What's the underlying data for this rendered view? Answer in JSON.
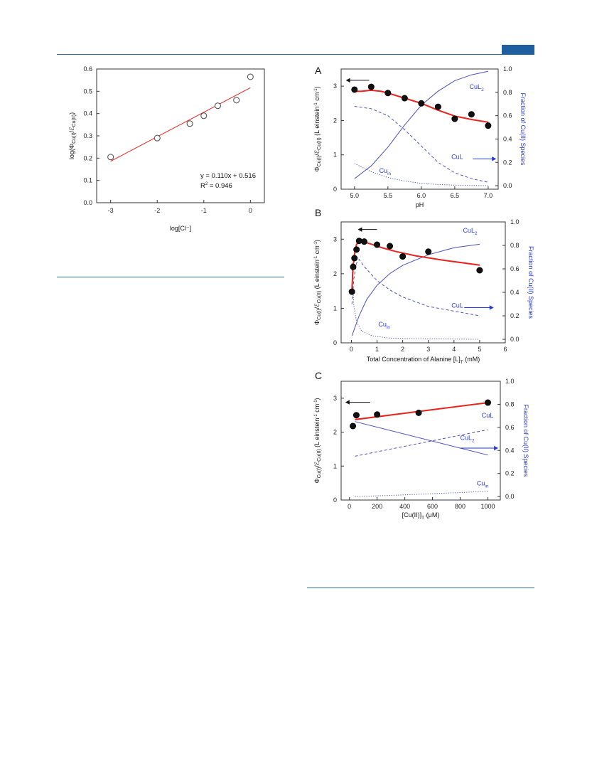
{
  "colors": {
    "fit": "#e8231e",
    "species": "#4a52b8",
    "arrow_black": "#111111",
    "arrow_blue": "#1f3be0",
    "blue_label": "#2a3bd6",
    "rule": "#2e6da4"
  },
  "chart_data": [
    {
      "id": "small",
      "type": "scatter",
      "title": "",
      "xlabel": "log[Cl⁻]",
      "ylabel": "log(Φ_Cu(I)/ℰ_Cu(II))",
      "xlim": [
        -3.3,
        0.3
      ],
      "ylim": [
        0.0,
        0.6
      ],
      "xticks": [
        "-3",
        "-2",
        "-1",
        "0"
      ],
      "xtick_values": [
        -3,
        -2,
        -1,
        0
      ],
      "yticks": [
        "0.0",
        "0.1",
        "0.2",
        "0.3",
        "0.4",
        "0.5",
        "0.6"
      ],
      "ytick_values": [
        0.0,
        0.1,
        0.2,
        0.3,
        0.4,
        0.5,
        0.6
      ],
      "points": {
        "x": [
          -3,
          -2,
          -1.3,
          -1,
          -0.7,
          -0.3,
          0
        ],
        "y": [
          0.205,
          0.29,
          0.355,
          0.39,
          0.435,
          0.46,
          0.565
        ]
      },
      "fit": {
        "slope": 0.11,
        "intercept": 0.516,
        "x_range": [
          -3,
          0
        ]
      },
      "equation": "y = 0.110x + 0.516",
      "r2_label": "R",
      "r2_sup": "2",
      "r2_value": " = 0.946"
    },
    {
      "id": "A",
      "type": "scatter",
      "panel_label": "A",
      "xlabel": "pH",
      "ylabel": "Φ_Cu(I)/ℰ_Cu(II) (L einstein⁻¹ cm⁻¹)",
      "y2label": "Fraction of Cu(II) Species",
      "xlim": [
        4.8,
        7.15
      ],
      "ylim": [
        0,
        3.5
      ],
      "y2lim": [
        -0.03,
        1.0
      ],
      "xticks": [
        "5.0",
        "5.5",
        "6.0",
        "6.5",
        "7.0"
      ],
      "xtick_values": [
        5.0,
        5.5,
        6.0,
        6.5,
        7.0
      ],
      "yticks": [
        "0",
        "1",
        "2",
        "3"
      ],
      "ytick_values": [
        0,
        1,
        2,
        3
      ],
      "y2ticks": [
        "0.0",
        "0.2",
        "0.4",
        "0.6",
        "0.8",
        "1.0"
      ],
      "y2tick_values": [
        0.0,
        0.2,
        0.4,
        0.6,
        0.8,
        1.0
      ],
      "points": {
        "x": [
          5.0,
          5.25,
          5.5,
          5.75,
          6.0,
          6.25,
          6.5,
          6.75,
          7.0
        ],
        "y": [
          2.9,
          2.98,
          2.8,
          2.65,
          2.5,
          2.4,
          2.05,
          2.18,
          1.85
        ]
      },
      "fit": {
        "x": [
          5.0,
          5.1,
          5.25,
          5.4,
          5.5,
          5.75,
          6.0,
          6.25,
          6.5,
          6.75,
          7.0
        ],
        "y": [
          2.85,
          2.85,
          2.88,
          2.85,
          2.8,
          2.65,
          2.5,
          2.3,
          2.13,
          2.03,
          1.95
        ]
      },
      "series": [
        {
          "style": "solid",
          "x": [
            5.0,
            5.25,
            5.5,
            5.75,
            6.0,
            6.25,
            6.5,
            6.75,
            7.0
          ],
          "y": [
            0.06,
            0.17,
            0.33,
            0.52,
            0.69,
            0.81,
            0.9,
            0.95,
            0.98
          ]
        },
        {
          "style": "dashed",
          "x": [
            5.0,
            5.25,
            5.5,
            5.75,
            6.0,
            6.25,
            6.5,
            6.75,
            7.0
          ],
          "y": [
            0.68,
            0.66,
            0.6,
            0.48,
            0.34,
            0.2,
            0.11,
            0.06,
            0.03
          ]
        },
        {
          "style": "dotted",
          "x": [
            5.0,
            5.25,
            5.5,
            5.75,
            6.0,
            6.25,
            6.5,
            6.75,
            7.0
          ],
          "y": [
            0.19,
            0.12,
            0.07,
            0.04,
            0.02,
            0.01,
            0.005,
            0.002,
            0.0
          ]
        }
      ],
      "species_labels": [
        {
          "base": "CuL",
          "sub": "2",
          "x": 6.72,
          "y2": 0.83
        },
        {
          "base": "CuL",
          "sub": "",
          "x": 6.45,
          "y2": 0.23
        },
        {
          "base": "Cu",
          "sub": "in",
          "x": 5.37,
          "y2": 0.11
        }
      ],
      "arrow_left": {
        "x": [
          5.22,
          4.87
        ],
        "y": 3.17
      },
      "arrow_right": {
        "x": [
          6.77,
          7.12
        ],
        "y2": 0.23
      }
    },
    {
      "id": "B",
      "type": "scatter",
      "panel_label": "B",
      "xlabel": "Total Concentration of Alanine [L]",
      "xlabel_sub": "T",
      "xlabel_unit": " (mM)",
      "ylabel": "Φ_Cu(I)/ℰ_Cu(II) (L einstein⁻¹ cm⁻¹)",
      "y2label": "Fraction of Cu(II) Species",
      "xlim": [
        -0.4,
        6.0
      ],
      "ylim": [
        0,
        3.5
      ],
      "y2lim": [
        -0.03,
        1.0
      ],
      "xticks": [
        "0",
        "1",
        "2",
        "3",
        "4",
        "5",
        "6"
      ],
      "xtick_values": [
        0,
        1,
        2,
        3,
        4,
        5,
        6
      ],
      "yticks": [
        "0",
        "1",
        "2",
        "3"
      ],
      "ytick_values": [
        0,
        1,
        2,
        3
      ],
      "y2ticks": [
        "0.0",
        "0.2",
        "0.4",
        "0.6",
        "0.8",
        "1.0"
      ],
      "y2tick_values": [
        0.0,
        0.2,
        0.4,
        0.6,
        0.8,
        1.0
      ],
      "points": {
        "x": [
          0.02,
          0.07,
          0.12,
          0.2,
          0.3,
          0.5,
          1.0,
          1.5,
          2.0,
          3.0,
          5.0
        ],
        "y": [
          1.48,
          2.2,
          2.45,
          2.7,
          2.95,
          2.93,
          2.84,
          2.8,
          2.5,
          2.64,
          2.1
        ]
      },
      "fit": {
        "x": [
          0.02,
          0.05,
          0.1,
          0.15,
          0.2,
          0.3,
          0.5,
          0.8,
          1.2,
          1.7,
          2.5,
          3.5,
          5.0
        ],
        "y": [
          1.5,
          2.0,
          2.45,
          2.7,
          2.85,
          2.93,
          2.92,
          2.85,
          2.75,
          2.65,
          2.52,
          2.4,
          2.25
        ]
      },
      "series": [
        {
          "style": "solid",
          "x": [
            0.02,
            0.3,
            0.6,
            1.0,
            1.5,
            2.0,
            3.0,
            4.0,
            5.0
          ],
          "y": [
            0.03,
            0.2,
            0.34,
            0.46,
            0.56,
            0.63,
            0.72,
            0.78,
            0.81
          ]
        },
        {
          "style": "dashed",
          "x": [
            0.02,
            0.1,
            0.2,
            0.3,
            0.5,
            1.0,
            1.5,
            2.0,
            3.0,
            4.0,
            5.0
          ],
          "y": [
            0.3,
            0.52,
            0.65,
            0.68,
            0.62,
            0.5,
            0.42,
            0.36,
            0.28,
            0.24,
            0.2
          ]
        },
        {
          "style": "dotted",
          "x": [
            0.02,
            0.05,
            0.1,
            0.2,
            0.4,
            0.8,
            1.5,
            2.5,
            5.0
          ],
          "y": [
            0.65,
            0.45,
            0.28,
            0.15,
            0.07,
            0.03,
            0.01,
            0.005,
            0.0
          ]
        }
      ],
      "species_labels": [
        {
          "base": "CuL",
          "sub": "2",
          "x": 4.35,
          "y2": 0.91
        },
        {
          "base": "CuL",
          "sub": "",
          "x": 3.9,
          "y2": 0.27
        },
        {
          "base": "Cu",
          "sub": "in",
          "x": 1.05,
          "y2": 0.11
        }
      ],
      "arrow_left": {
        "x": [
          1.0,
          0.25
        ],
        "y": 3.28
      },
      "arrow_right": {
        "x": [
          4.4,
          5.55
        ],
        "y2": 0.27
      }
    },
    {
      "id": "C",
      "type": "scatter",
      "panel_label": "C",
      "xlabel": "[Cu(II)]",
      "xlabel_sub": "T",
      "xlabel_unit": " (μM)",
      "ylabel": "Φ_Cu(I)/ℰ_Cu(II) (L einstein⁻¹ cm⁻¹)",
      "y2label": "Fraction of Cu(II) Species",
      "xlim": [
        -60,
        1090
      ],
      "ylim": [
        0,
        3.5
      ],
      "y2lim": [
        -0.03,
        1.0
      ],
      "xticks": [
        "0",
        "200",
        "400",
        "600",
        "800",
        "1000"
      ],
      "xtick_values": [
        0,
        200,
        400,
        600,
        800,
        1000
      ],
      "yticks": [
        "0",
        "1",
        "2",
        "3"
      ],
      "ytick_values": [
        0,
        1,
        2,
        3
      ],
      "y2ticks": [
        "0.0",
        "0.2",
        "0.4",
        "0.6",
        "0.8",
        "1.0"
      ],
      "y2tick_values": [
        0.0,
        0.2,
        0.4,
        0.6,
        0.8,
        1.0
      ],
      "points": {
        "x": [
          25,
          50,
          200,
          500,
          1000
        ],
        "y": [
          2.18,
          2.5,
          2.52,
          2.57,
          2.87
        ]
      },
      "fit": {
        "x": [
          40,
          1000
        ],
        "y": [
          2.37,
          2.87
        ]
      },
      "series": [
        {
          "style": "solid",
          "x": [
            40,
            1000
          ],
          "y": [
            0.65,
            0.36
          ]
        },
        {
          "style": "dashed",
          "x": [
            40,
            1000
          ],
          "y": [
            0.35,
            0.58
          ]
        },
        {
          "style": "dotted",
          "x": [
            40,
            300,
            600,
            1000
          ],
          "y": [
            0.0,
            0.01,
            0.025,
            0.045
          ]
        }
      ],
      "species_labels": [
        {
          "base": "CuL",
          "sub": "",
          "x": 955,
          "y2": 0.685
        },
        {
          "base": "CuL",
          "sub": "2",
          "x": 800,
          "y2": 0.49
        },
        {
          "base": "Cu",
          "sub": "in",
          "x": 920,
          "y2": 0.095
        }
      ],
      "arrow_left": {
        "x": [
          150,
          -30
        ],
        "y": 2.88
      },
      "arrow_right": {
        "x": [
          800,
          1075
        ],
        "y2": 0.42
      }
    }
  ]
}
